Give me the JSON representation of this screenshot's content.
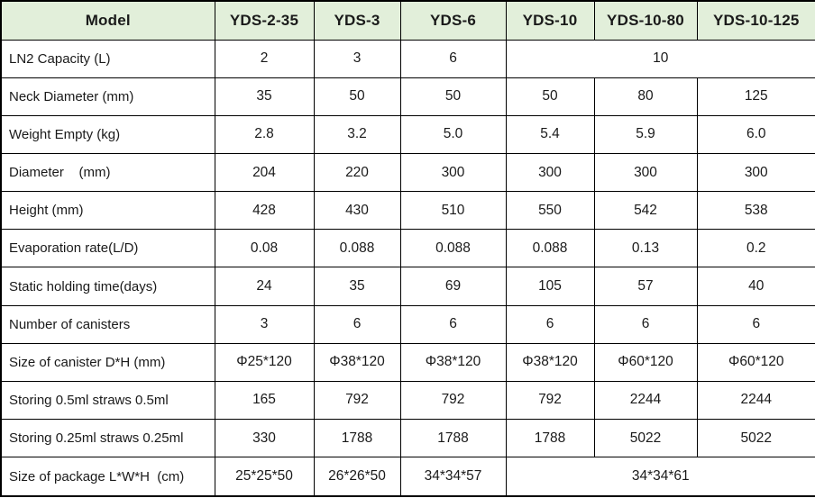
{
  "colors": {
    "header_bg": "#e2efda",
    "border": "#000000",
    "text": "#1a1a1a",
    "body_bg": "#ffffff"
  },
  "table": {
    "columns": [
      "Model",
      "YDS-2-35",
      "YDS-3",
      "YDS-6",
      "YDS-10",
      "YDS-10-80",
      "YDS-10-125"
    ],
    "rows": [
      {
        "label": "LN2 Capacity (L)",
        "cells": [
          {
            "t": "2"
          },
          {
            "t": "3"
          },
          {
            "t": "6"
          },
          {
            "t": "10",
            "span": 3
          }
        ]
      },
      {
        "label": "Neck Diameter (mm)",
        "cells": [
          {
            "t": "35"
          },
          {
            "t": "50"
          },
          {
            "t": "50"
          },
          {
            "t": "50"
          },
          {
            "t": "80"
          },
          {
            "t": "125"
          }
        ]
      },
      {
        "label": "Weight Empty (kg)",
        "cells": [
          {
            "t": "2.8"
          },
          {
            "t": "3.2"
          },
          {
            "t": "5.0"
          },
          {
            "t": "5.4"
          },
          {
            "t": "5.9"
          },
          {
            "t": "6.0"
          }
        ]
      },
      {
        "label": "Diameter    (mm)",
        "cells": [
          {
            "t": "204"
          },
          {
            "t": "220"
          },
          {
            "t": "300"
          },
          {
            "t": "300"
          },
          {
            "t": "300"
          },
          {
            "t": "300"
          }
        ]
      },
      {
        "label": "Height (mm)",
        "cells": [
          {
            "t": "428"
          },
          {
            "t": "430"
          },
          {
            "t": "510"
          },
          {
            "t": "550"
          },
          {
            "t": "542"
          },
          {
            "t": "538"
          }
        ]
      },
      {
        "label": "Evaporation rate(L/D)",
        "cells": [
          {
            "t": "0.08"
          },
          {
            "t": "0.088"
          },
          {
            "t": "0.088"
          },
          {
            "t": "0.088"
          },
          {
            "t": "0.13"
          },
          {
            "t": "0.2"
          }
        ]
      },
      {
        "label": "Static holding time(days)",
        "cells": [
          {
            "t": "24"
          },
          {
            "t": "35"
          },
          {
            "t": "69"
          },
          {
            "t": "105"
          },
          {
            "t": "57"
          },
          {
            "t": "40"
          }
        ]
      },
      {
        "label": "Number of canisters",
        "cells": [
          {
            "t": "3"
          },
          {
            "t": "6"
          },
          {
            "t": "6"
          },
          {
            "t": "6"
          },
          {
            "t": "6"
          },
          {
            "t": "6"
          }
        ]
      },
      {
        "label": "Size of canister D*H (mm)",
        "cells": [
          {
            "t": "Φ25*120"
          },
          {
            "t": "Φ38*120"
          },
          {
            "t": "Φ38*120"
          },
          {
            "t": "Φ38*120"
          },
          {
            "t": "Φ60*120"
          },
          {
            "t": "Φ60*120"
          }
        ]
      },
      {
        "label": "Storing 0.5ml straws 0.5ml",
        "cells": [
          {
            "t": "165"
          },
          {
            "t": "792"
          },
          {
            "t": "792"
          },
          {
            "t": "792"
          },
          {
            "t": "2244"
          },
          {
            "t": "2244"
          }
        ]
      },
      {
        "label": "Storing 0.25ml straws 0.25ml",
        "cells": [
          {
            "t": "330"
          },
          {
            "t": "1788"
          },
          {
            "t": "1788"
          },
          {
            "t": "1788"
          },
          {
            "t": "5022"
          },
          {
            "t": "5022"
          }
        ]
      },
      {
        "label": "Size of package L*W*H  (cm)",
        "cells": [
          {
            "t": "25*25*50"
          },
          {
            "t": "26*26*50"
          },
          {
            "t": "34*34*57"
          },
          {
            "t": "34*34*61",
            "span": 3
          }
        ]
      }
    ]
  }
}
